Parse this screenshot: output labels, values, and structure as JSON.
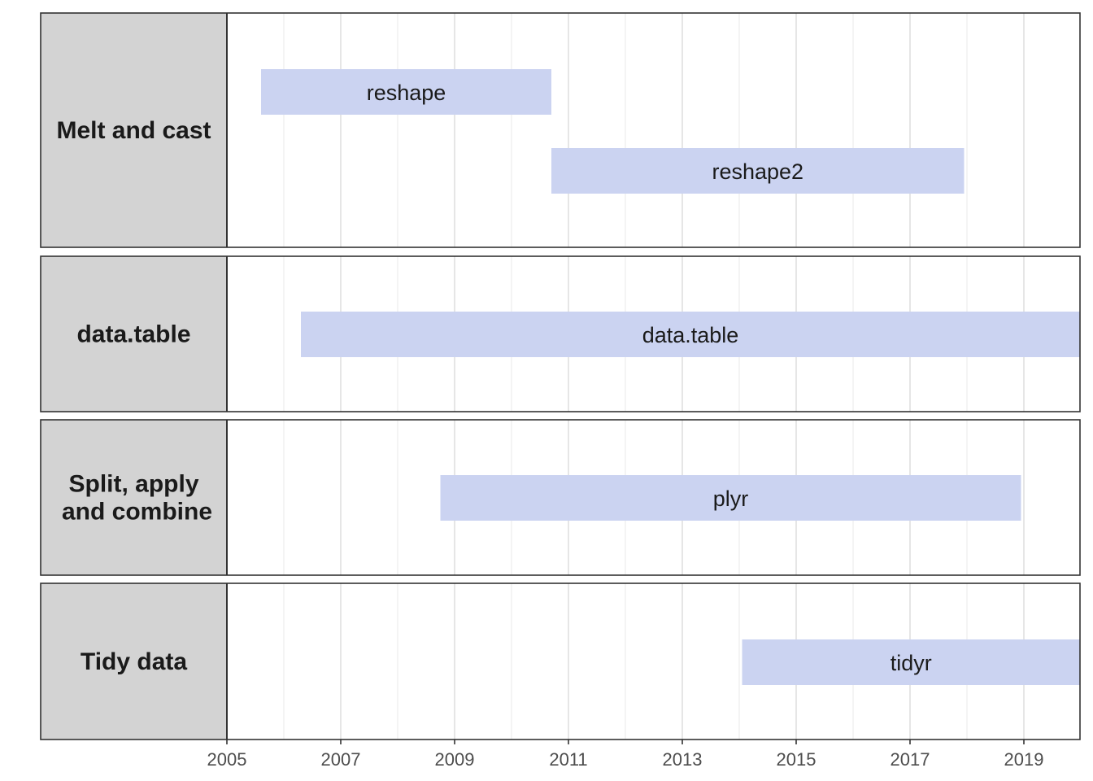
{
  "chart_data": {
    "type": "bar",
    "orientation": "horizontal-timeline",
    "title": "",
    "xlabel": "",
    "ylabel": "",
    "xlim": [
      2005,
      2020
    ],
    "x_ticks": [
      "2005",
      "2007",
      "2009",
      "2011",
      "2013",
      "2015",
      "2017",
      "2019"
    ],
    "grid": true,
    "bar_color": "#cbd3f1",
    "strip_fill": "#d3d3d3",
    "panels": [
      {
        "label": "Melt and cast",
        "bars": [
          {
            "name": "reshape",
            "start": 2005.6,
            "end": 2010.7
          },
          {
            "name": "reshape2",
            "start": 2010.7,
            "end": 2017.95
          }
        ]
      },
      {
        "label": "data.table",
        "bars": [
          {
            "name": "data.table",
            "start": 2006.3,
            "end": 2020
          }
        ]
      },
      {
        "label": "Split, apply\nand combine",
        "bars": [
          {
            "name": "plyr",
            "start": 2008.75,
            "end": 2018.95
          }
        ]
      },
      {
        "label": "Tidy data",
        "bars": [
          {
            "name": "tidyr",
            "start": 2014.05,
            "end": 2020
          }
        ]
      }
    ]
  }
}
